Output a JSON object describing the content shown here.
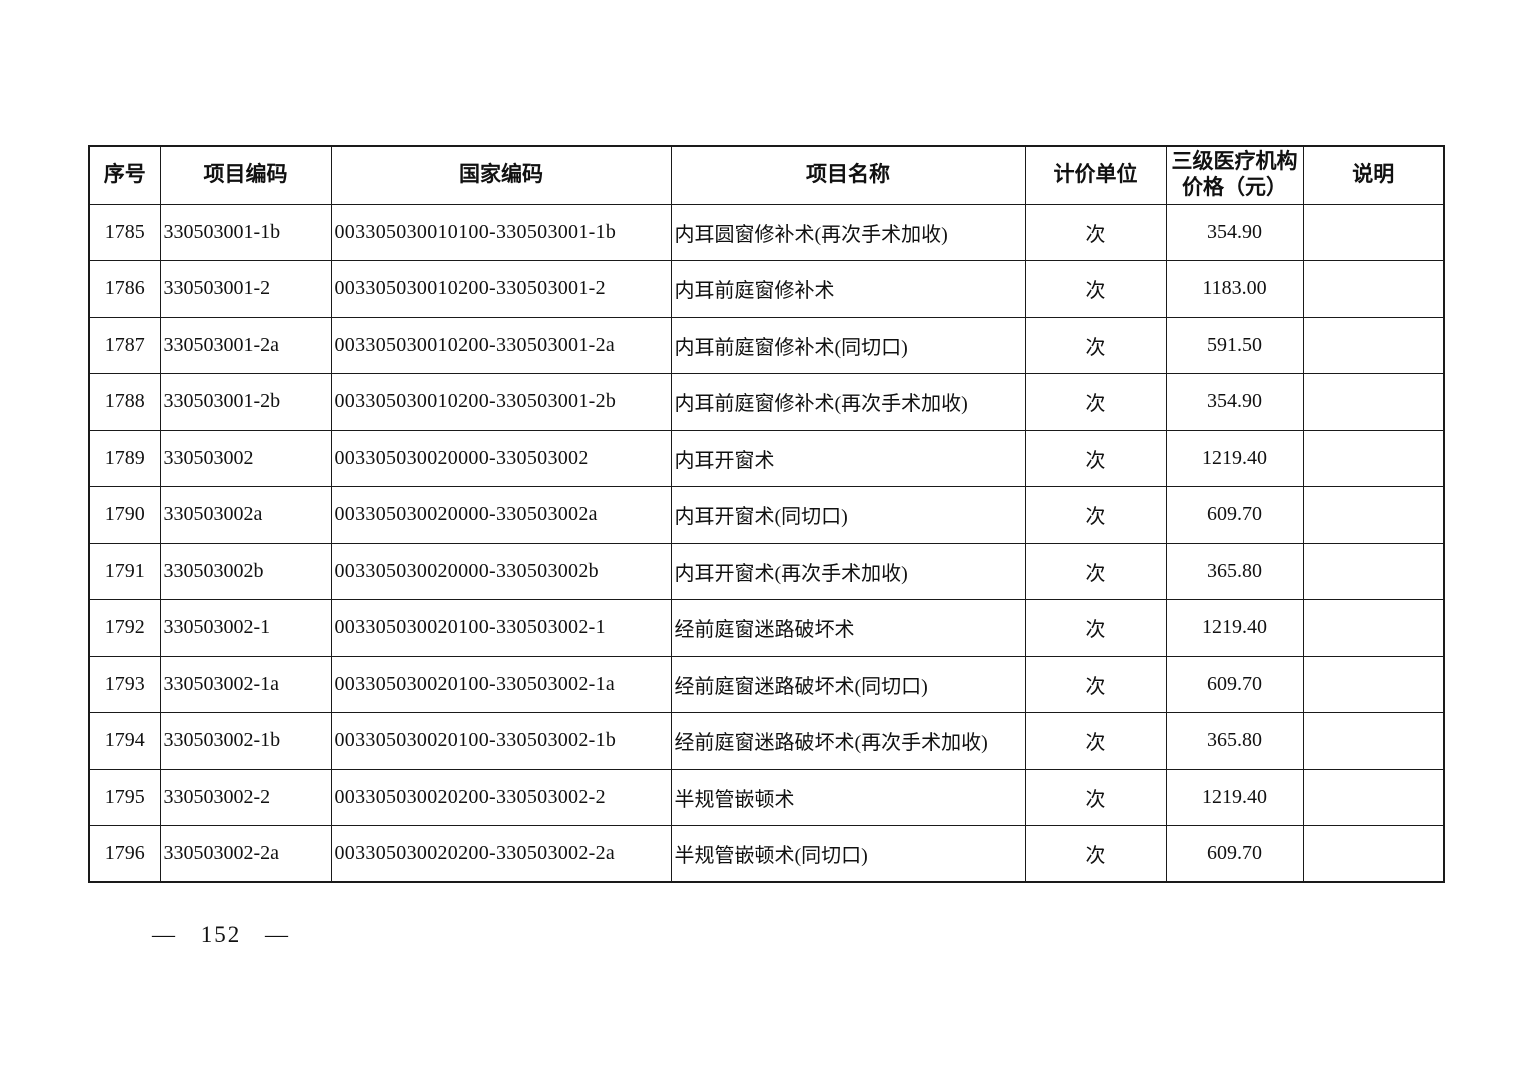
{
  "page": {
    "footer_page_label": "— 152 —"
  },
  "table": {
    "headers": {
      "seq": "序号",
      "project_code": "项目编码",
      "national_code": "国家编码",
      "project_name": "项目名称",
      "unit": "计价单位",
      "price": "三级医疗机构\n价格（元）",
      "note": "说明"
    },
    "rows": [
      {
        "seq": "1785",
        "project_code": "330503001-1b",
        "national_code": "003305030010100-330503001-1b",
        "project_name": "内耳圆窗修补术(再次手术加收)",
        "unit": "次",
        "price": "354.90",
        "note": ""
      },
      {
        "seq": "1786",
        "project_code": "330503001-2",
        "national_code": "003305030010200-330503001-2",
        "project_name": "内耳前庭窗修补术",
        "unit": "次",
        "price": "1183.00",
        "note": ""
      },
      {
        "seq": "1787",
        "project_code": "330503001-2a",
        "national_code": "003305030010200-330503001-2a",
        "project_name": "内耳前庭窗修补术(同切口)",
        "unit": "次",
        "price": "591.50",
        "note": ""
      },
      {
        "seq": "1788",
        "project_code": "330503001-2b",
        "national_code": "003305030010200-330503001-2b",
        "project_name": "内耳前庭窗修补术(再次手术加收)",
        "unit": "次",
        "price": "354.90",
        "note": ""
      },
      {
        "seq": "1789",
        "project_code": "330503002",
        "national_code": "003305030020000-330503002",
        "project_name": "内耳开窗术",
        "unit": "次",
        "price": "1219.40",
        "note": ""
      },
      {
        "seq": "1790",
        "project_code": "330503002a",
        "national_code": "003305030020000-330503002a",
        "project_name": "内耳开窗术(同切口)",
        "unit": "次",
        "price": "609.70",
        "note": ""
      },
      {
        "seq": "1791",
        "project_code": "330503002b",
        "national_code": "003305030020000-330503002b",
        "project_name": "内耳开窗术(再次手术加收)",
        "unit": "次",
        "price": "365.80",
        "note": ""
      },
      {
        "seq": "1792",
        "project_code": "330503002-1",
        "national_code": "003305030020100-330503002-1",
        "project_name": "经前庭窗迷路破坏术",
        "unit": "次",
        "price": "1219.40",
        "note": ""
      },
      {
        "seq": "1793",
        "project_code": "330503002-1a",
        "national_code": "003305030020100-330503002-1a",
        "project_name": "经前庭窗迷路破坏术(同切口)",
        "unit": "次",
        "price": "609.70",
        "note": ""
      },
      {
        "seq": "1794",
        "project_code": "330503002-1b",
        "national_code": "003305030020100-330503002-1b",
        "project_name": "经前庭窗迷路破坏术(再次手术加收)",
        "unit": "次",
        "price": "365.80",
        "note": ""
      },
      {
        "seq": "1795",
        "project_code": "330503002-2",
        "national_code": "003305030020200-330503002-2",
        "project_name": "半规管嵌顿术",
        "unit": "次",
        "price": "1219.40",
        "note": ""
      },
      {
        "seq": "1796",
        "project_code": "330503002-2a",
        "national_code": "003305030020200-330503002-2a",
        "project_name": "半规管嵌顿术(同切口)",
        "unit": "次",
        "price": "609.70",
        "note": ""
      }
    ]
  }
}
